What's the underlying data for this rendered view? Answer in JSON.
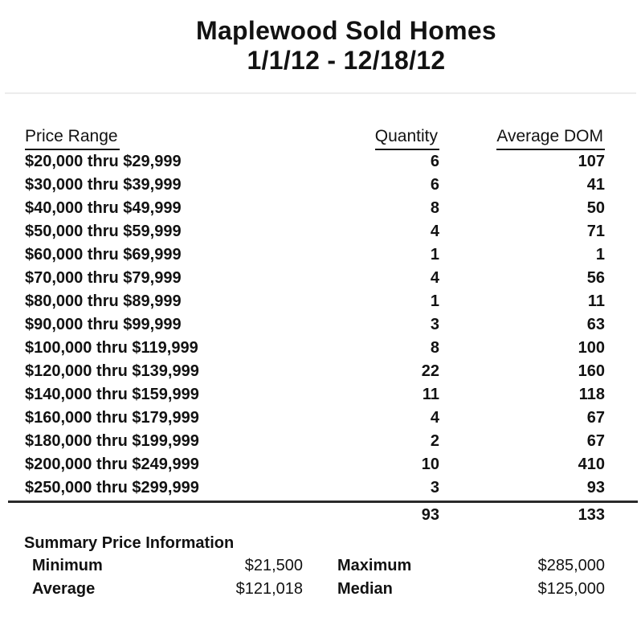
{
  "title": "Maplewood Sold Homes",
  "subtitle": "1/1/12 - 12/18/12",
  "table": {
    "headers": {
      "price_range": "Price Range",
      "quantity": "Quantity",
      "average_dom": "Average DOM"
    },
    "rows": [
      {
        "range": "$20,000 thru $29,999",
        "quantity": "6",
        "average_dom": "107"
      },
      {
        "range": "$30,000 thru $39,999",
        "quantity": "6",
        "average_dom": "41"
      },
      {
        "range": "$40,000 thru $49,999",
        "quantity": "8",
        "average_dom": "50"
      },
      {
        "range": "$50,000 thru $59,999",
        "quantity": "4",
        "average_dom": "71"
      },
      {
        "range": "$60,000 thru $69,999",
        "quantity": "1",
        "average_dom": "1"
      },
      {
        "range": "$70,000 thru $79,999",
        "quantity": "4",
        "average_dom": "56"
      },
      {
        "range": "$80,000 thru $89,999",
        "quantity": "1",
        "average_dom": "11"
      },
      {
        "range": "$90,000 thru $99,999",
        "quantity": "3",
        "average_dom": "63"
      },
      {
        "range": "$100,000 thru $119,999",
        "quantity": "8",
        "average_dom": "100"
      },
      {
        "range": "$120,000 thru $139,999",
        "quantity": "22",
        "average_dom": "160"
      },
      {
        "range": "$140,000 thru $159,999",
        "quantity": "11",
        "average_dom": "118"
      },
      {
        "range": "$160,000 thru $179,999",
        "quantity": "4",
        "average_dom": "67"
      },
      {
        "range": "$180,000 thru $199,999",
        "quantity": "2",
        "average_dom": "67"
      },
      {
        "range": "$200,000 thru $249,999",
        "quantity": "10",
        "average_dom": "410"
      },
      {
        "range": "$250,000 thru $299,999",
        "quantity": "3",
        "average_dom": "93"
      }
    ],
    "totals": {
      "quantity": "93",
      "average_dom": "133"
    }
  },
  "summary": {
    "heading": "Summary Price Information",
    "minimum": {
      "label": "Minimum",
      "value": "$21,500"
    },
    "maximum": {
      "label": "Maximum",
      "value": "$285,000"
    },
    "average": {
      "label": "Average",
      "value": "$121,018"
    },
    "median": {
      "label": "Median",
      "value": "$125,000"
    }
  },
  "colors": {
    "text": "#121212",
    "light_rule": "#ececec",
    "dark_rule": "#2a2a2a",
    "background": "#ffffff"
  }
}
